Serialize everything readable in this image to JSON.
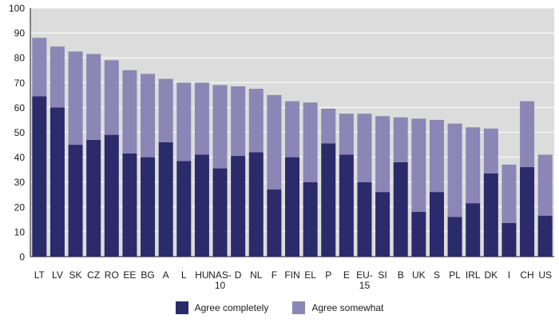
{
  "chart_data": {
    "type": "bar",
    "stacked": true,
    "categories": [
      "LT",
      "LV",
      "SK",
      "CZ",
      "RO",
      "EE",
      "BG",
      "A",
      "L",
      "HU",
      "NAS-10",
      "D",
      "NL",
      "F",
      "FIN",
      "EL",
      "P",
      "E",
      "EU-15",
      "SI",
      "B",
      "UK",
      "S",
      "PL",
      "IRL",
      "DK",
      "I",
      "CH",
      "US"
    ],
    "series": [
      {
        "name": "Agree completely",
        "color": "#2b2a6b",
        "values": [
          64.5,
          60,
          45,
          47,
          49,
          41.5,
          40,
          46,
          38.5,
          41,
          35.5,
          40.5,
          42,
          27,
          40,
          30,
          45.5,
          41,
          30,
          26,
          38,
          18,
          26,
          16,
          21.5,
          33.5,
          13.5,
          36,
          16.5
        ]
      },
      {
        "name": "Agree somewhat",
        "color": "#8b86b6",
        "values": [
          23.5,
          24.5,
          37.5,
          34.5,
          30,
          33.5,
          33.5,
          25.5,
          31.5,
          29,
          33.5,
          28,
          25.5,
          38,
          22.5,
          32,
          14,
          16.5,
          27.5,
          30.5,
          18,
          37.5,
          29,
          37.5,
          30.5,
          18,
          23.5,
          26.5,
          24.5
        ]
      }
    ],
    "ylim": [
      0,
      100
    ],
    "yticks": [
      0,
      10,
      20,
      30,
      40,
      50,
      60,
      70,
      80,
      90,
      100
    ],
    "grid": true,
    "legend_position": "bottom",
    "plot_background": "#dcdcdc",
    "grid_color": "#ffffff"
  }
}
